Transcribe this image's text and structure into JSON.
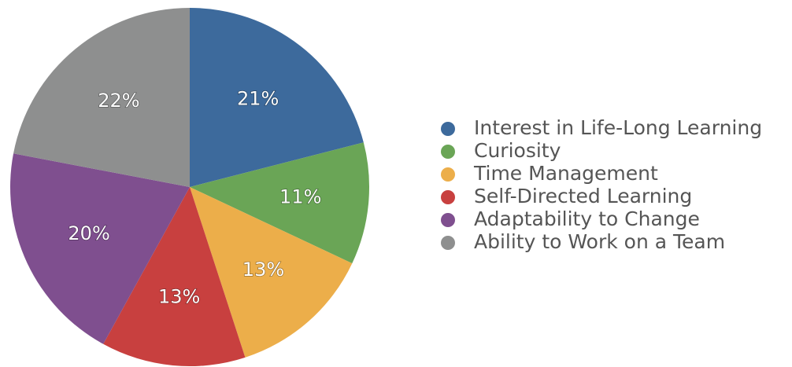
{
  "chart_data": {
    "type": "pie",
    "categories": [
      "Interest in Life-Long Learning",
      "Curiosity",
      "Time Management",
      "Self-Directed Learning",
      "Adaptability to Change",
      "Ability to Work on a Team"
    ],
    "values": [
      21,
      11,
      13,
      13,
      20,
      22
    ],
    "value_labels": [
      "21%",
      "11%",
      "13%",
      "13%",
      "20%",
      "22%"
    ],
    "colors": [
      "#3d6a9c",
      "#6aa556",
      "#ecae4a",
      "#c8403f",
      "#7f4f8f",
      "#8e8f8f"
    ],
    "legend": "right"
  }
}
